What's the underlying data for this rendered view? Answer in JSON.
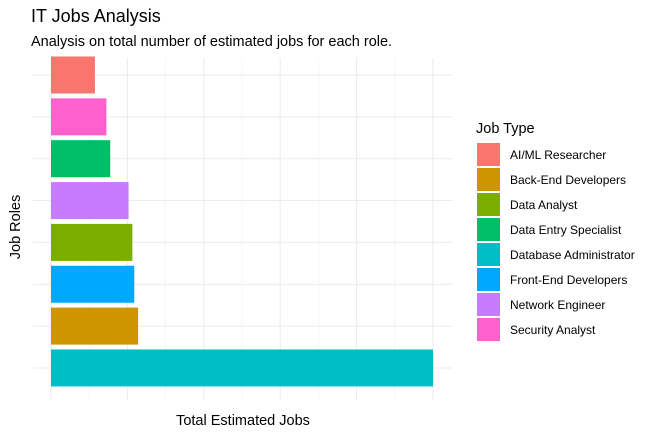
{
  "chart_data": {
    "type": "bar",
    "orientation": "horizontal",
    "title": "IT Jobs Analysis",
    "subtitle": "Analysis on total number of estimated jobs for each role.",
    "xlabel": "Total Estimated Jobs",
    "ylabel": "Job Roles",
    "x_tick_labels_shown": false,
    "y_tick_labels_shown": false,
    "grid": true,
    "legend_title": "Job Type",
    "legend_position": "right",
    "xlim": [
      0,
      100
    ],
    "categories": [
      "AI/ML Researcher",
      "Security Analyst",
      "Data Entry Specialist",
      "Network Engineer",
      "Data Analyst",
      "Front-End Developers",
      "Back-End Developers",
      "Database Administrator"
    ],
    "values": [
      11.5,
      14.5,
      15.5,
      20.3,
      21.3,
      21.8,
      22.8,
      100
    ],
    "colors": {
      "AI/ML Researcher": "#F8766D",
      "Back-End Developers": "#CD9600",
      "Data Analyst": "#7CAE00",
      "Data Entry Specialist": "#00BE67",
      "Database Administrator": "#00BFC4",
      "Front-End Developers": "#00A9FF",
      "Network Engineer": "#C77CFF",
      "Security Analyst": "#FF61CC"
    },
    "legend_entries": [
      "AI/ML Researcher",
      "Back-End Developers",
      "Data Analyst",
      "Data Entry Specialist",
      "Database Administrator",
      "Front-End Developers",
      "Network Engineer",
      "Security Analyst"
    ]
  }
}
